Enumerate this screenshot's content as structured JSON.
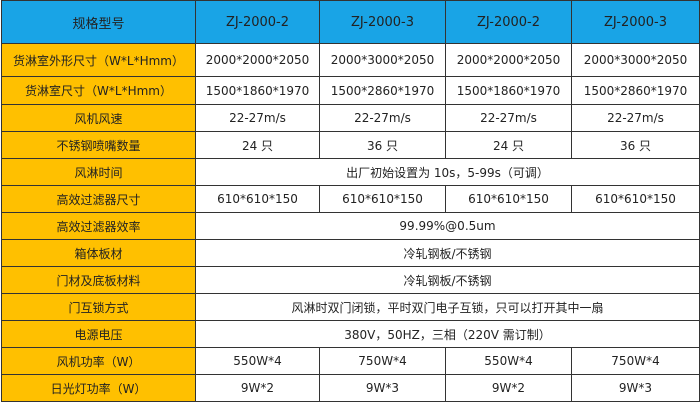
{
  "colors": {
    "header": "#19a4e6",
    "label_column": "#ffc000"
  },
  "header": [
    "规格型号",
    "ZJ-2000-2",
    "ZJ-2000-3",
    "ZJ-2000-2",
    "ZJ-2000-3"
  ],
  "rows": [
    {
      "label": "货淋室外形尺寸（W*L*Hmm）",
      "values": [
        "2000*2000*2050",
        "2000*3000*2050",
        "2000*2000*2050",
        "2000*3000*2050"
      ]
    },
    {
      "label": "货淋室尺寸（W*L*Hmm）",
      "values": [
        "1500*1860*1970",
        "1500*2860*1970",
        "1500*1860*1970",
        "1500*2860*1970"
      ]
    },
    {
      "label": "风机风速",
      "values": [
        "22-27m/s",
        "22-27m/s",
        "22-27m/s",
        "22-27m/s"
      ]
    },
    {
      "label": "不锈钢喷嘴数量",
      "values": [
        "24 只",
        "36 只",
        "24 只",
        "36 只"
      ]
    },
    {
      "label": "风淋时间",
      "merged": "出厂初始设置为 10s，5-99s（可调）"
    },
    {
      "label": "高效过滤器尺寸",
      "values": [
        "610*610*150",
        "610*610*150",
        "610*610*150",
        "610*610*150"
      ]
    },
    {
      "label": "高效过滤器效率",
      "merged": "99.99%@0.5um"
    },
    {
      "label": "箱体板材",
      "merged": "冷轧钢板/不锈钢"
    },
    {
      "label": "门材及底板材料",
      "merged": "冷轧钢板/不锈钢"
    },
    {
      "label": "门互锁方式",
      "merged": "风淋时双门闭锁，平时双门电子互锁，只可以打开其中一扇"
    },
    {
      "label": "电源电压",
      "merged": "380V，50HZ，三相（220V 需订制）"
    },
    {
      "label": "风机功率（W）",
      "values": [
        "550W*4",
        "750W*4",
        "550W*4",
        "750W*4"
      ]
    },
    {
      "label": "日光灯功率（W）",
      "values": [
        "9W*2",
        "9W*3",
        "9W*2",
        "9W*3"
      ]
    }
  ]
}
